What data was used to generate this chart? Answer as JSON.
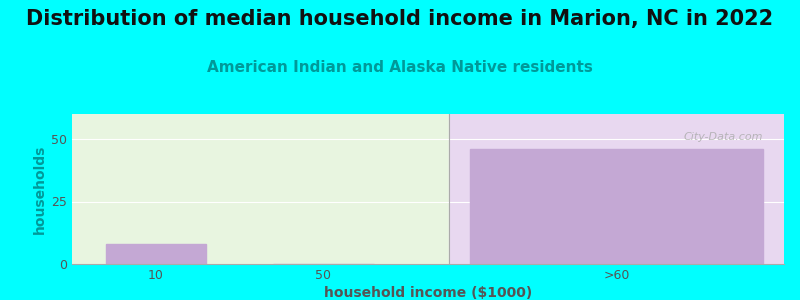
{
  "title": "Distribution of median household income in Marion, NC in 2022",
  "subtitle": "American Indian and Alaska Native residents",
  "xlabel": "household income ($1000)",
  "ylabel": "households",
  "categories": [
    "10",
    "50",
    ">60"
  ],
  "values": [
    8,
    0,
    46
  ],
  "bar_color": "#c4a8d4",
  "background_color": "#00ffff",
  "plot_bg_color_left": "#e8f5e0",
  "plot_bg_color_right": "#e8d8f0",
  "grid_color": "#ffffff",
  "yticks": [
    0,
    25,
    50
  ],
  "ylim": [
    0,
    60
  ],
  "title_fontsize": 15,
  "subtitle_fontsize": 11,
  "subtitle_color": "#009999",
  "axis_label_fontsize": 10,
  "tick_fontsize": 9,
  "ylabel_color": "#009999",
  "xlabel_color": "#555555",
  "tick_color": "#555555",
  "watermark": "City-Data.com"
}
